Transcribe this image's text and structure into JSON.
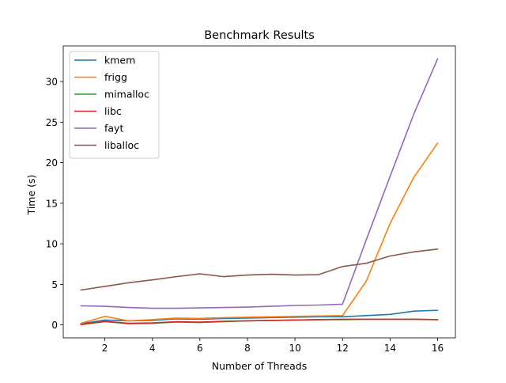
{
  "chart_data": {
    "type": "line",
    "title": "Benchmark Results",
    "xlabel": "Number of Threads",
    "ylabel": "Time (s)",
    "xlim": [
      0.25,
      16.75
    ],
    "ylim": [
      -1.6,
      34.4
    ],
    "xticks": [
      2,
      4,
      6,
      8,
      10,
      12,
      14,
      16
    ],
    "yticks": [
      0,
      5,
      10,
      15,
      20,
      25,
      30
    ],
    "grid": false,
    "legend_position": "upper-left",
    "x": [
      1,
      2,
      3,
      4,
      5,
      6,
      7,
      8,
      9,
      10,
      11,
      12,
      13,
      14,
      15,
      16
    ],
    "series": [
      {
        "name": "kmem",
        "color": "#1f77b4",
        "values": [
          0.15,
          0.6,
          0.5,
          0.55,
          0.75,
          0.7,
          0.8,
          0.85,
          0.9,
          0.95,
          1.0,
          1.0,
          1.15,
          1.3,
          1.7,
          1.8
        ]
      },
      {
        "name": "frigg",
        "color": "#ff7f0e",
        "values": [
          0.2,
          1.05,
          0.5,
          0.65,
          0.85,
          0.8,
          0.9,
          0.95,
          1.0,
          1.05,
          1.1,
          1.15,
          5.4,
          12.5,
          18.2,
          22.4
        ]
      },
      {
        "name": "mimalloc",
        "color": "#2ca02c",
        "values": [
          0.05,
          0.4,
          0.15,
          0.2,
          0.35,
          0.3,
          0.4,
          0.5,
          0.55,
          0.6,
          0.65,
          0.65,
          0.7,
          0.7,
          0.7,
          0.65
        ]
      },
      {
        "name": "libc",
        "color": "#d62728",
        "values": [
          0.05,
          0.45,
          0.2,
          0.25,
          0.4,
          0.35,
          0.45,
          0.5,
          0.55,
          0.6,
          0.65,
          0.7,
          0.7,
          0.7,
          0.7,
          0.65
        ]
      },
      {
        "name": "fayt",
        "color": "#9467bd",
        "values": [
          2.35,
          2.3,
          2.15,
          2.05,
          2.05,
          2.1,
          2.15,
          2.2,
          2.3,
          2.4,
          2.45,
          2.55,
          10.5,
          18.3,
          26.0,
          32.8
        ]
      },
      {
        "name": "liballoc",
        "color": "#8c564b",
        "values": [
          4.3,
          4.75,
          5.2,
          5.55,
          5.95,
          6.3,
          5.95,
          6.15,
          6.25,
          6.15,
          6.2,
          7.2,
          7.6,
          8.5,
          9.0,
          9.35
        ]
      }
    ]
  }
}
